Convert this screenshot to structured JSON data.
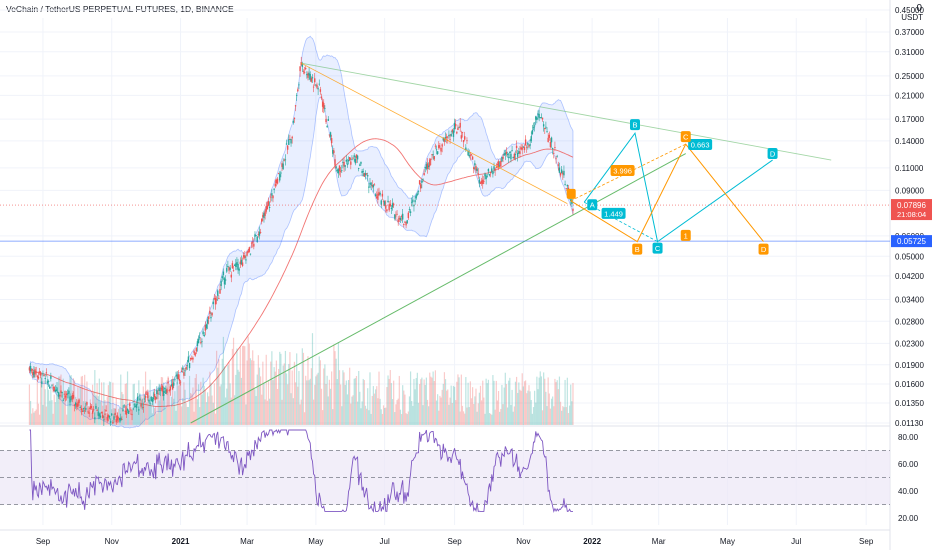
{
  "header": {
    "title": "VeChain / TetherUS PERPETUAL FUTURES, 1D, BINANCE",
    "currency": "USDT",
    "currency_suffix": "˅",
    "top_right_value": "0"
  },
  "colors": {
    "grid": "#f0f3fa",
    "axis_text": "#131722",
    "band_fill": "#2962ff",
    "band_line": "#2962ff",
    "candle_up": "#26a69a",
    "candle_down": "#ef5350",
    "ma_red": "#ef5350",
    "ma_orange": "#ff9800",
    "trend_green": "#66bb6a",
    "harmonic_cyan": "#00bcd4",
    "harmonic_orange": "#ff9800",
    "price_badge": "#ef5350",
    "support_badge": "#2962ff",
    "rsi_line": "#7e57c2",
    "rsi_band": "#ede7f6"
  },
  "chart_data": {
    "type": "line",
    "price_axis": {
      "ticks": [
        "0.45000",
        "0.37000",
        "0.31000",
        "0.25000",
        "0.21000",
        "0.17000",
        "0.14000",
        "0.11000",
        "0.09000",
        "0.06000",
        "0.05000",
        "0.04200",
        "0.03400",
        "0.02800",
        "0.02300",
        "0.01900",
        "0.01600",
        "0.01350",
        "0.01130"
      ],
      "tick_values": [
        0.45,
        0.37,
        0.31,
        0.25,
        0.21,
        0.17,
        0.14,
        0.11,
        0.09,
        0.06,
        0.05,
        0.042,
        0.034,
        0.028,
        0.023,
        0.019,
        0.016,
        0.0135,
        0.0113
      ],
      "scale": "log"
    },
    "time_axis": {
      "labels": [
        "Sep",
        "Nov",
        "2021",
        "Mar",
        "May",
        "Jul",
        "Sep",
        "Nov",
        "2022",
        "Mar",
        "May",
        "Jul",
        "Sep"
      ],
      "bold": [
        "2021",
        "2022"
      ]
    },
    "current_price": {
      "value": "0.07896",
      "countdown": "21:08:04"
    },
    "support_level": {
      "value": "0.05725"
    },
    "price_series": [
      {
        "date": "2020-08-20",
        "close": 0.0185
      },
      {
        "date": "2020-09-05",
        "close": 0.0165
      },
      {
        "date": "2020-09-25",
        "close": 0.014
      },
      {
        "date": "2020-10-15",
        "close": 0.0125
      },
      {
        "date": "2020-11-05",
        "close": 0.0118
      },
      {
        "date": "2020-11-25",
        "close": 0.0135
      },
      {
        "date": "2020-12-15",
        "close": 0.015
      },
      {
        "date": "2021-01-01",
        "close": 0.017
      },
      {
        "date": "2021-01-20",
        "close": 0.024
      },
      {
        "date": "2021-02-10",
        "close": 0.043
      },
      {
        "date": "2021-02-25",
        "close": 0.047
      },
      {
        "date": "2021-03-10",
        "close": 0.06
      },
      {
        "date": "2021-03-25",
        "close": 0.09
      },
      {
        "date": "2021-04-10",
        "close": 0.15
      },
      {
        "date": "2021-04-18",
        "close": 0.28
      },
      {
        "date": "2021-05-05",
        "close": 0.22
      },
      {
        "date": "2021-05-20",
        "close": 0.11
      },
      {
        "date": "2021-06-05",
        "close": 0.12
      },
      {
        "date": "2021-06-25",
        "close": 0.085
      },
      {
        "date": "2021-07-20",
        "close": 0.068
      },
      {
        "date": "2021-08-10",
        "close": 0.12
      },
      {
        "date": "2021-09-05",
        "close": 0.16
      },
      {
        "date": "2021-09-25",
        "close": 0.095
      },
      {
        "date": "2021-10-15",
        "close": 0.12
      },
      {
        "date": "2021-11-05",
        "close": 0.135
      },
      {
        "date": "2021-11-15",
        "close": 0.18
      },
      {
        "date": "2021-12-01",
        "close": 0.12
      },
      {
        "date": "2021-12-15",
        "close": 0.079
      }
    ],
    "harmonic_labels": [
      {
        "text": "B",
        "color": "cyan"
      },
      {
        "text": "C",
        "color": "cyan"
      },
      {
        "text": "D",
        "color": "cyan"
      },
      {
        "text": "A",
        "color": "cyan"
      },
      {
        "text": "1.449",
        "color": "cyan"
      },
      {
        "text": "0.663",
        "color": "cyan"
      },
      {
        "text": "B",
        "color": "orange"
      },
      {
        "text": "C",
        "color": "orange"
      },
      {
        "text": "D",
        "color": "orange"
      },
      {
        "text": "3.996",
        "color": "orange"
      },
      {
        "text": "1",
        "color": "orange"
      }
    ],
    "rsi": {
      "ticks": [
        "80.00",
        "60.00",
        "40.00",
        "20.00"
      ],
      "tick_values": [
        80,
        60,
        40,
        20
      ],
      "levels": [
        70,
        50,
        30
      ]
    },
    "grid": true
  }
}
